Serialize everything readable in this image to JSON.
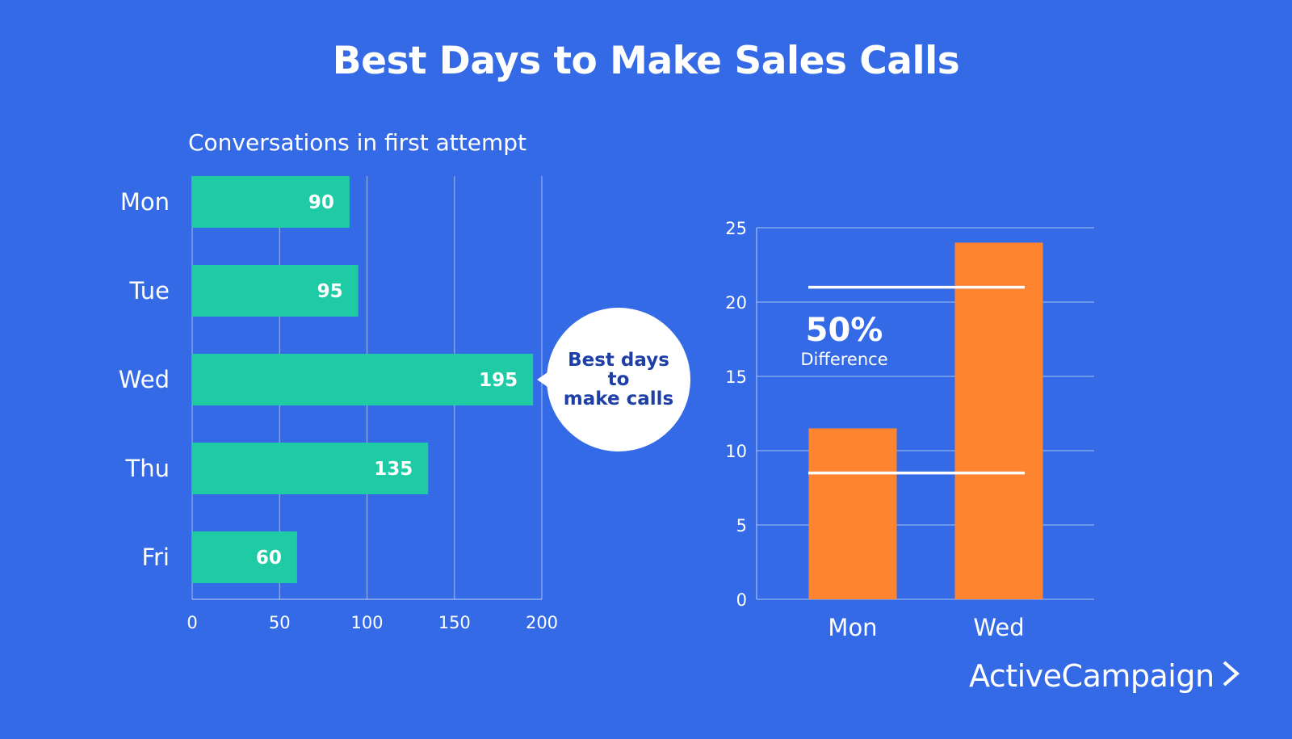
{
  "title": "Best Days to Make Sales Calls",
  "callout": {
    "text": "Best days to\nmake calls"
  },
  "difference": {
    "value": "50%",
    "label": "Difference"
  },
  "brand": {
    "name": "ActiveCampaign",
    "icon": "chevron-right-icon"
  },
  "colors": {
    "background": "#356AE6",
    "bar_primary": "#1ECBA4",
    "bar_secondary": "#FF8430",
    "text": "#FFFFFF",
    "callout_text": "#1E3FA5"
  },
  "chart_data": [
    {
      "type": "bar",
      "orientation": "horizontal",
      "title": "Conversations in first attempt",
      "categories": [
        "Mon",
        "Tue",
        "Wed",
        "Thu",
        "Fri"
      ],
      "values": [
        90,
        95,
        195,
        135,
        60
      ],
      "data_labels": [
        "90",
        "95",
        "195",
        "135",
        "60"
      ],
      "xlim": [
        0,
        200
      ],
      "xticks": [
        0,
        50,
        100,
        150,
        200
      ],
      "grid": true
    },
    {
      "type": "bar",
      "orientation": "vertical",
      "categories": [
        "Mon",
        "Wed"
      ],
      "values": [
        11.5,
        24
      ],
      "ylim": [
        0,
        25
      ],
      "yticks": [
        0,
        5,
        10,
        15,
        20,
        25
      ],
      "grid": true,
      "reference_lines": [
        8.5,
        21
      ]
    }
  ]
}
